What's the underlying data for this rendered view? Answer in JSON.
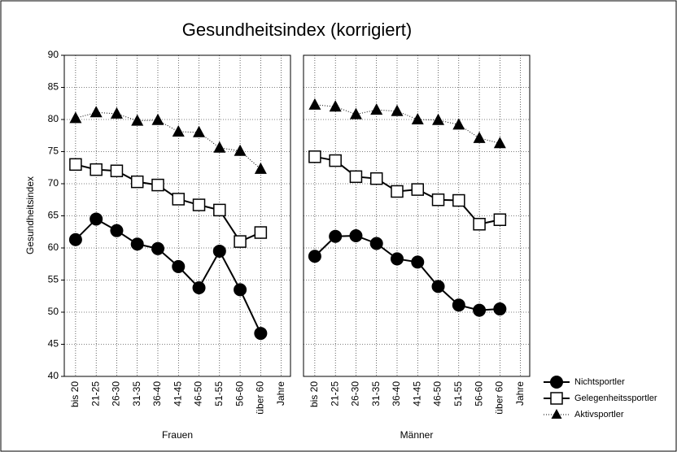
{
  "figure": {
    "title": "Gesundheitsindex (korrigiert)",
    "y_label": "Gesundheitsindex"
  },
  "chart_data": [
    {
      "type": "line",
      "x_label": "Frauen",
      "x_unit": "Jahre",
      "categories": [
        "bis 20",
        "21-25",
        "26-30",
        "31-35",
        "36-40",
        "41-45",
        "46-50",
        "51-55",
        "56-60",
        "über 60"
      ],
      "ylim": [
        40,
        90
      ],
      "yticks": [
        40,
        45,
        50,
        55,
        60,
        65,
        70,
        75,
        80,
        85,
        90
      ],
      "grid": true,
      "series": [
        {
          "name": "Nichtsportler",
          "color": "#000000",
          "marker": "circle",
          "line_style": "solid",
          "values": [
            61.3,
            64.5,
            62.7,
            60.6,
            59.9,
            57.1,
            53.8,
            59.5,
            53.5,
            46.7
          ]
        },
        {
          "name": "Gelegenheitssportler",
          "color": "#000000",
          "marker": "square",
          "line_style": "solid",
          "values": [
            73.0,
            72.2,
            72.0,
            70.3,
            69.8,
            67.6,
            66.7,
            65.9,
            61.0,
            62.4
          ]
        },
        {
          "name": "Aktivsportler",
          "color": "#000000",
          "marker": "triangle",
          "line_style": "dotted",
          "values": [
            80.2,
            81.1,
            80.9,
            79.8,
            79.9,
            78.1,
            78.0,
            75.6,
            75.1,
            72.3
          ]
        }
      ]
    },
    {
      "type": "line",
      "x_label": "Männer",
      "x_unit": "Jahre",
      "categories": [
        "bis 20",
        "21-25",
        "26-30",
        "31-35",
        "36-40",
        "41-45",
        "46-50",
        "51-55",
        "56-60",
        "über 60"
      ],
      "ylim": [
        40,
        90
      ],
      "yticks": [
        40,
        45,
        50,
        55,
        60,
        65,
        70,
        75,
        80,
        85,
        90
      ],
      "grid": true,
      "series": [
        {
          "name": "Nichtsportler",
          "color": "#000000",
          "marker": "circle",
          "line_style": "solid",
          "values": [
            58.7,
            61.8,
            61.9,
            60.7,
            58.3,
            57.8,
            54.0,
            51.1,
            50.3,
            50.5
          ]
        },
        {
          "name": "Gelegenheitssportler",
          "color": "#000000",
          "marker": "square",
          "line_style": "solid",
          "values": [
            74.2,
            73.6,
            71.1,
            70.8,
            68.8,
            69.1,
            67.5,
            67.4,
            63.7,
            64.4
          ]
        },
        {
          "name": "Aktivsportler",
          "color": "#000000",
          "marker": "triangle",
          "line_style": "dotted",
          "values": [
            82.3,
            82.0,
            80.8,
            81.5,
            81.3,
            80.0,
            79.9,
            79.2,
            77.1,
            76.3
          ]
        }
      ]
    }
  ]
}
